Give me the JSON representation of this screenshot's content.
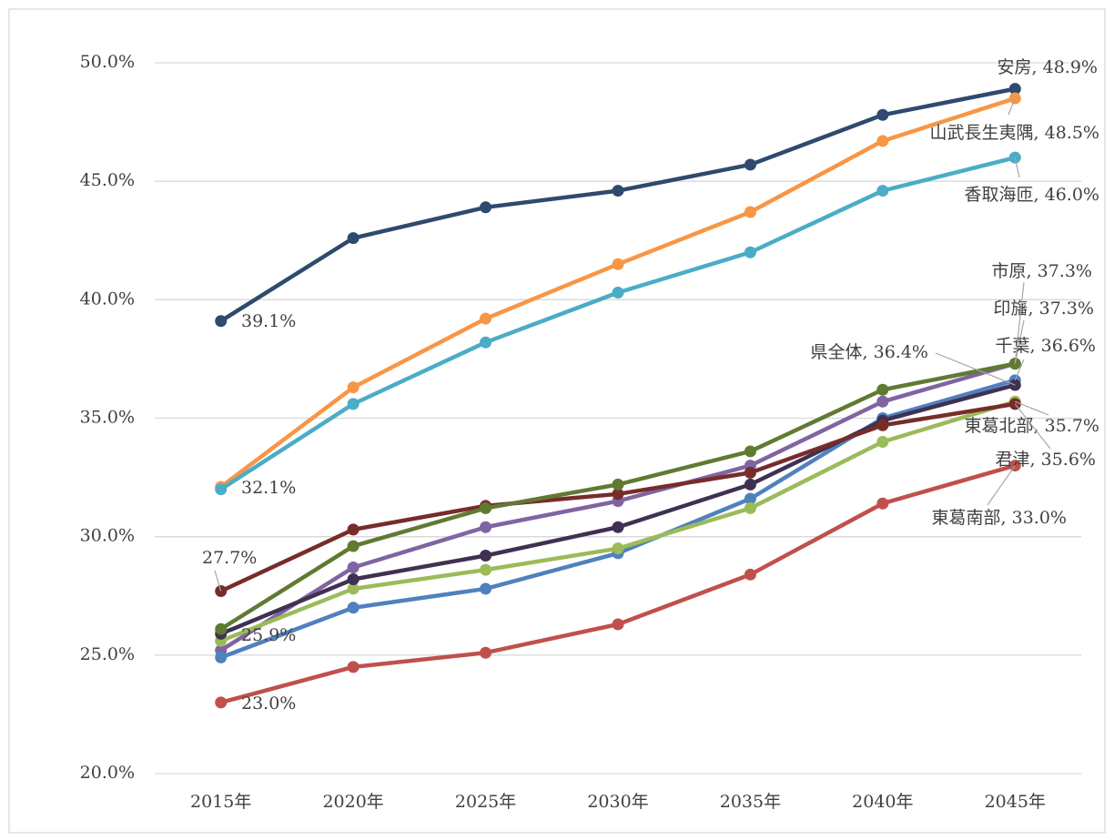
{
  "chart_data": {
    "type": "line",
    "categories": [
      "2015年",
      "2020年",
      "2025年",
      "2030年",
      "2035年",
      "2040年",
      "2045年"
    ],
    "ylim": [
      20,
      50
    ],
    "yticks": [
      {
        "value": 20,
        "label": "20.0%"
      },
      {
        "value": 25,
        "label": "25.0%"
      },
      {
        "value": 30,
        "label": "30.0%"
      },
      {
        "value": 35,
        "label": "35.0%"
      },
      {
        "value": 40,
        "label": "40.0%"
      },
      {
        "value": 45,
        "label": "45.0%"
      },
      {
        "value": 50,
        "label": "50.0%"
      }
    ],
    "grid": true,
    "series": [
      {
        "color": "#2e4a6e",
        "values": [
          39.1,
          42.6,
          43.9,
          44.6,
          45.7,
          47.8,
          48.9
        ],
        "value_labels": [
          "39.1%",
          null,
          null,
          null,
          null,
          null,
          "安房, 48.9%"
        ]
      },
      {
        "color": "#f79646",
        "values": [
          32.1,
          36.3,
          39.2,
          41.5,
          43.7,
          46.7,
          48.5
        ],
        "value_labels": [
          "32.1%",
          null,
          null,
          null,
          null,
          null,
          "山武長生夷隅, 48.5%"
        ]
      },
      {
        "color": "#4bacc6",
        "values": [
          32.0,
          35.6,
          38.2,
          40.3,
          42.0,
          44.6,
          46.0
        ],
        "value_labels": [
          null,
          null,
          null,
          null,
          null,
          null,
          "香取海匝, 46.0%"
        ]
      },
      {
        "color": "#8064a2",
        "values": [
          25.2,
          28.7,
          30.4,
          31.5,
          33.0,
          35.7,
          37.3
        ],
        "value_labels": [
          null,
          null,
          null,
          null,
          null,
          null,
          "印旛, 37.3%"
        ]
      },
      {
        "color": "#4f81bd",
        "values": [
          24.9,
          27.0,
          27.8,
          29.3,
          31.6,
          35.0,
          36.6
        ],
        "value_labels": [
          null,
          null,
          null,
          null,
          null,
          null,
          "千葉, 36.6%"
        ]
      },
      {
        "color": "#9bbb59",
        "values": [
          25.6,
          27.8,
          28.6,
          29.5,
          31.2,
          34.0,
          35.7
        ],
        "value_labels": [
          null,
          null,
          null,
          null,
          null,
          null,
          "東葛北部, 35.7%"
        ]
      },
      {
        "color": "#3f3151",
        "values": [
          25.9,
          28.2,
          29.2,
          30.4,
          32.2,
          34.9,
          36.4
        ],
        "value_labels": [
          "25.9%",
          null,
          null,
          null,
          null,
          null,
          "県全体, 36.4%"
        ]
      },
      {
        "color": "#772c2a",
        "values": [
          27.7,
          30.3,
          31.3,
          31.8,
          32.7,
          34.7,
          35.6
        ],
        "value_labels": [
          "27.7%",
          null,
          null,
          null,
          null,
          null,
          "君津, 35.6%"
        ]
      },
      {
        "color": "#617a32",
        "values": [
          26.1,
          29.6,
          31.2,
          32.2,
          33.6,
          36.2,
          37.3
        ],
        "value_labels": [
          null,
          null,
          null,
          null,
          null,
          null,
          "市原, 37.3%"
        ]
      },
      {
        "color": "#c0504d",
        "values": [
          23.0,
          24.5,
          25.1,
          26.3,
          28.4,
          31.4,
          33.0
        ],
        "value_labels": [
          "23.0%",
          null,
          null,
          null,
          null,
          null,
          "東葛南部, 33.0%"
        ]
      }
    ]
  }
}
